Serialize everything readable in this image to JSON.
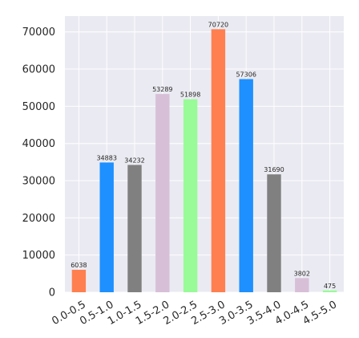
{
  "chart_data": {
    "type": "bar",
    "title": "",
    "xlabel": "",
    "ylabel": "",
    "categories": [
      "0.0-0.5",
      "0.5-1.0",
      "1.0-1.5",
      "1.5-2.0",
      "2.0-2.5",
      "2.5-3.0",
      "3.0-3.5",
      "3.5-4.0",
      "4.0-4.5",
      "4.5-5.0"
    ],
    "values": [
      6038,
      34883,
      34232,
      53289,
      51898,
      70720,
      57306,
      31690,
      3802,
      475
    ],
    "value_labels": [
      "6038",
      "34883",
      "34232",
      "53289",
      "51898",
      "70720",
      "57306",
      "31690",
      "3802",
      "475"
    ],
    "bar_colors": [
      "#ff7f50",
      "#1e90ff",
      "#808080",
      "#d8bfd8",
      "#98fb98",
      "#ff7f50",
      "#1e90ff",
      "#808080",
      "#d8bfd8",
      "#98fb98"
    ],
    "yticks": [
      0,
      10000,
      20000,
      30000,
      40000,
      50000,
      60000,
      70000
    ],
    "ytick_labels": [
      "0",
      "10000",
      "20000",
      "30000",
      "40000",
      "50000",
      "60000",
      "70000"
    ],
    "ylim": [
      0,
      74256
    ],
    "grid": true,
    "background": "#eaeaf2",
    "grid_color": "#ffffff"
  }
}
